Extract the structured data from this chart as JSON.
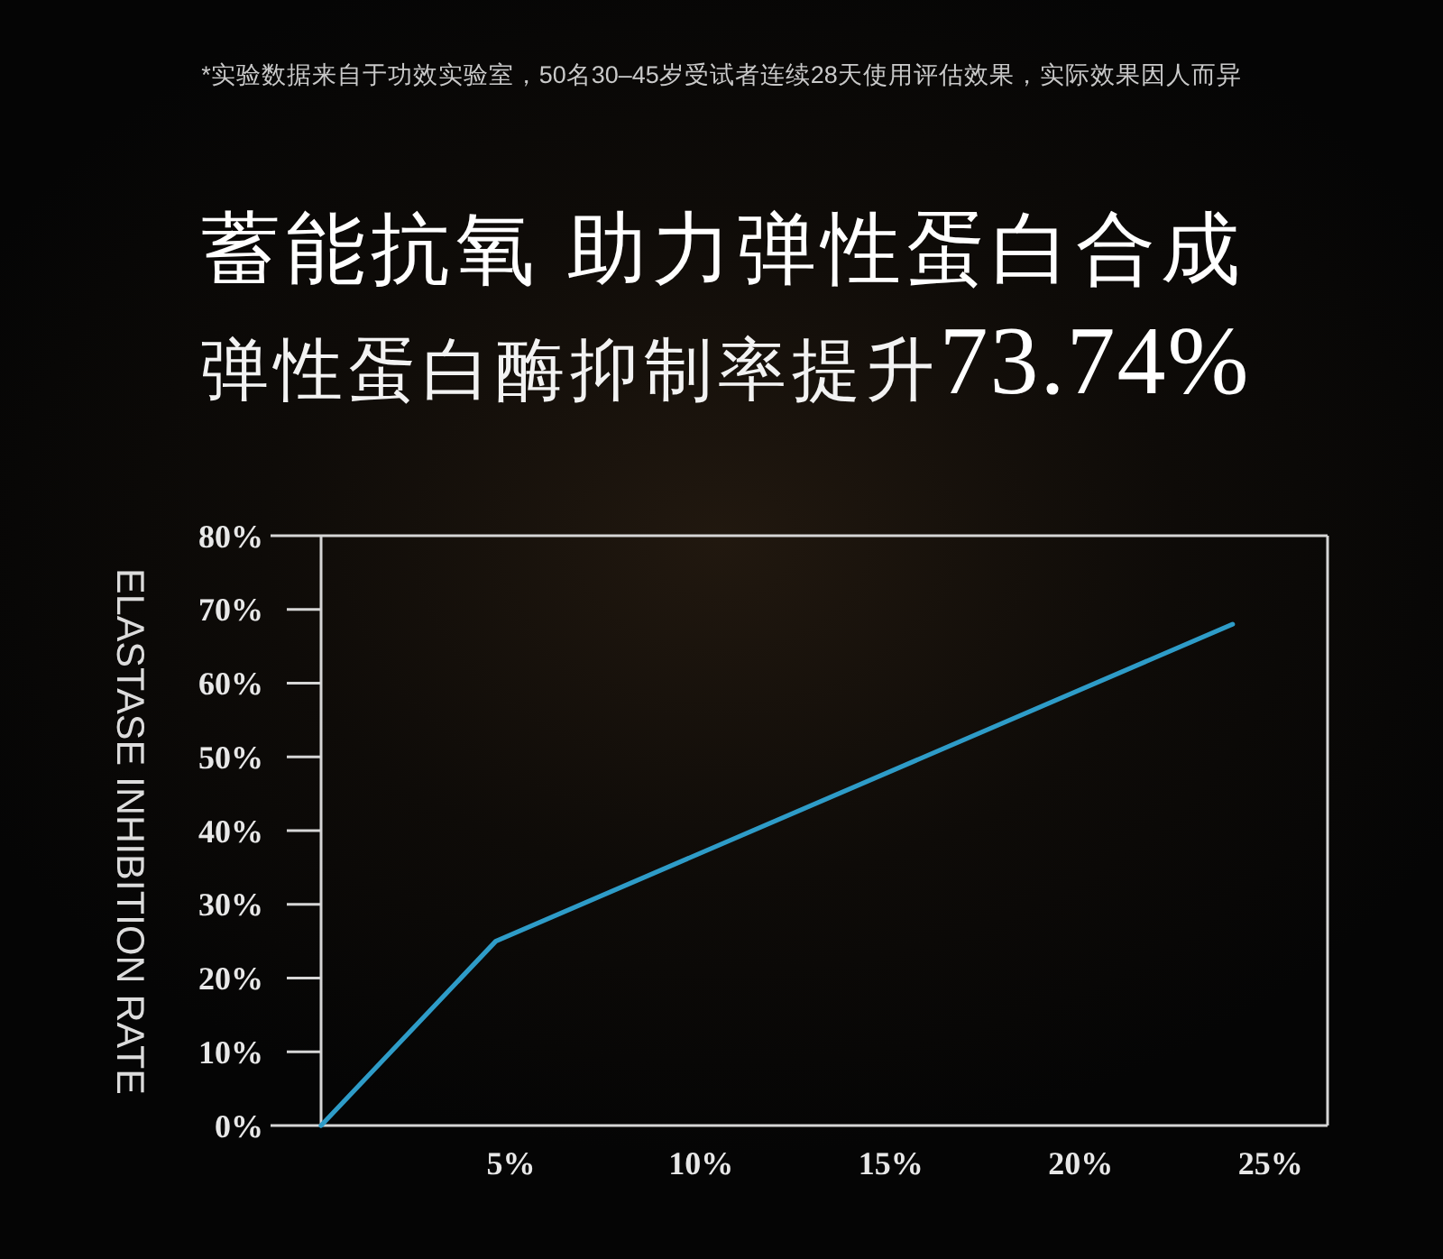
{
  "chart_data": {
    "type": "line",
    "title": "蓄能抗氧 助力弹性蛋白合成",
    "subtitle": "弹性蛋白酶抑制率提升**73.74%**",
    "ylabel": "ELASTASE INHIBITION RATE",
    "annotations": [
      "*实验数据来自于功效实验室，50名30–45岁受试者连续28天使用评估效果，实际效果因人而异"
    ],
    "x": [
      0,
      4.6,
      24
    ],
    "series": [
      {
        "color": "#2e9cc8",
        "values": [
          0,
          25,
          68
        ]
      }
    ],
    "xlim": [
      0,
      26.5
    ],
    "ylim": [
      0,
      80
    ],
    "xticks": [
      {
        "value": 5,
        "label": "5%"
      },
      {
        "value": 10,
        "label": "10%"
      },
      {
        "value": 15,
        "label": "15%"
      },
      {
        "value": 20,
        "label": "20%"
      },
      {
        "value": 25,
        "label": "25%"
      }
    ],
    "yticks": [
      {
        "value": 0,
        "label": "0%"
      },
      {
        "value": 10,
        "label": "10%"
      },
      {
        "value": 20,
        "label": "20%"
      },
      {
        "value": 30,
        "label": "30%"
      },
      {
        "value": 40,
        "label": "40%"
      },
      {
        "value": 50,
        "label": "50%"
      },
      {
        "value": 60,
        "label": "60%"
      },
      {
        "value": 70,
        "label": "70%"
      },
      {
        "value": 80,
        "label": "80%"
      }
    ],
    "line_style": "solid"
  }
}
